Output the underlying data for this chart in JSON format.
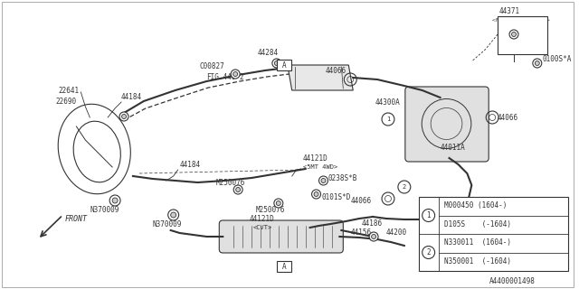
{
  "bg_color": "#ffffff",
  "dc": "#333333",
  "legend_rows": [
    {
      "num": "1",
      "p1": "D105S    (-1604)",
      "p2": "M000450 (1604-)"
    },
    {
      "num": "2",
      "p1": "N350001  (-1604)",
      "p2": "N330011  (1604-)"
    }
  ],
  "diagram_id": "A4400001498"
}
